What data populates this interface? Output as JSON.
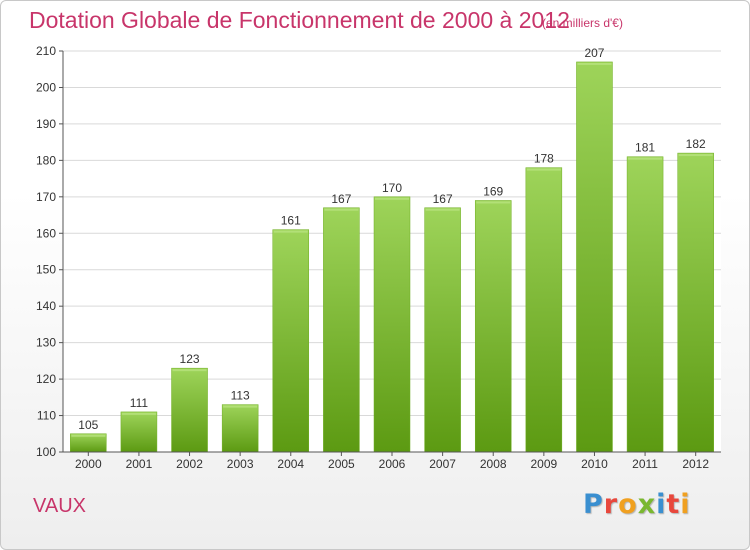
{
  "header": {
    "title": "Dotation Globale de Fonctionnement de 2000 à 2012",
    "unit": "(en milliers d'€)"
  },
  "commune": "VAUX",
  "brand": {
    "name": "Proxiti",
    "letters": [
      {
        "char": "P",
        "color": "#3a8fd0"
      },
      {
        "char": "r",
        "color": "#e8473c"
      },
      {
        "char": "o",
        "color": "#f0a020"
      },
      {
        "char": "x",
        "color": "#7ab830"
      },
      {
        "char": "i",
        "color": "#3a8fd0"
      },
      {
        "char": "t",
        "color": "#e8473c"
      },
      {
        "char": "i",
        "color": "#f0a020"
      }
    ]
  },
  "colors": {
    "title": "#c8356a",
    "bar_top": "#9ed45a",
    "bar_bottom": "#5c9a12",
    "grid": "#d9d9d9",
    "axis": "#555555"
  },
  "chart_data": {
    "type": "bar",
    "title": "Dotation Globale de Fonctionnement de 2000 à 2012",
    "subtitle": "(en milliers d'€)",
    "categories": [
      "2000",
      "2001",
      "2002",
      "2003",
      "2004",
      "2005",
      "2006",
      "2007",
      "2008",
      "2009",
      "2010",
      "2011",
      "2012"
    ],
    "values": [
      105,
      111,
      123,
      113,
      161,
      167,
      170,
      167,
      169,
      178,
      207,
      181,
      182
    ],
    "ylim": [
      100,
      210
    ],
    "yticks": [
      100,
      110,
      120,
      130,
      140,
      150,
      160,
      170,
      180,
      190,
      200,
      210
    ],
    "xlabel": "",
    "ylabel": "",
    "grid": true,
    "data_labels": true
  }
}
